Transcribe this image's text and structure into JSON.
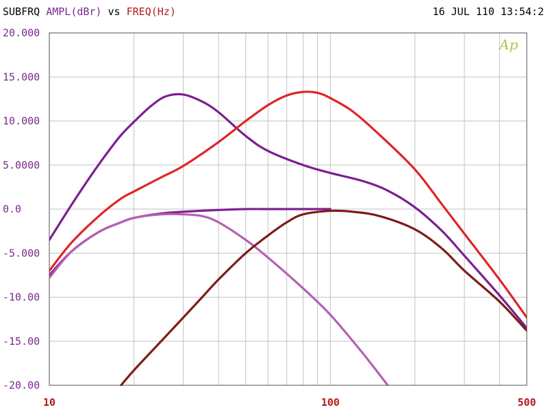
{
  "header": {
    "prefix": "SUBFRQ",
    "y_quantity": "AMPL(dBr)",
    "vs": "vs",
    "x_quantity": "FREQ(Hz)",
    "datetime": "16 JUL 110 13:54:2"
  },
  "logo": "Ap",
  "colors": {
    "grid": "#c2c2c2",
    "frame": "#8c8c8c",
    "ytick_text": "#7a2a8e",
    "xtick_text": "#b21a1a"
  },
  "chart_data": {
    "type": "line",
    "x_scale": "log",
    "xlim": [
      10,
      500
    ],
    "ylim": [
      -20,
      20
    ],
    "grid": true,
    "x_tick_labels": [
      {
        "value": 10,
        "label": "10"
      },
      {
        "value": 100,
        "label": "100"
      },
      {
        "value": 500,
        "label": "500"
      }
    ],
    "y_tick_labels": [
      {
        "value": 20,
        "label": "20.000"
      },
      {
        "value": 15,
        "label": "15.000"
      },
      {
        "value": 10,
        "label": "10.000"
      },
      {
        "value": 5,
        "label": "5.0000"
      },
      {
        "value": 0,
        "label": "0.0"
      },
      {
        "value": -5,
        "label": "-5.000"
      },
      {
        "value": -10,
        "label": "-10.00"
      },
      {
        "value": -15,
        "label": "-15.00"
      },
      {
        "value": -20,
        "label": "-20.00"
      }
    ],
    "series": [
      {
        "color": "#7a1f8f",
        "x": [
          10,
          12,
          14,
          16,
          18,
          20,
          23,
          26,
          30,
          35,
          40,
          50,
          60,
          80,
          100,
          130,
          160,
          200,
          250,
          300,
          400,
          500
        ],
        "y": [
          -3.5,
          0.5,
          3.7,
          6.3,
          8.4,
          9.9,
          11.7,
          12.8,
          13.0,
          12.2,
          11.0,
          8.3,
          6.6,
          5.0,
          4.1,
          3.2,
          2.1,
          0.2,
          -2.5,
          -5.3,
          -9.8,
          -13.5
        ]
      },
      {
        "color": "#e02424",
        "x": [
          10,
          12,
          15,
          18,
          20,
          25,
          30,
          40,
          50,
          60,
          70,
          80,
          90,
          100,
          120,
          150,
          200,
          250,
          300,
          400,
          500
        ],
        "y": [
          -7.0,
          -3.8,
          -0.8,
          1.2,
          2.0,
          3.6,
          4.9,
          7.6,
          10.0,
          11.8,
          12.9,
          13.3,
          13.2,
          12.6,
          11.1,
          8.4,
          4.5,
          0.5,
          -2.8,
          -8.0,
          -12.3
        ]
      },
      {
        "color": "#7e2190",
        "x": [
          10,
          12,
          15,
          18,
          20,
          25,
          30,
          40,
          50,
          60,
          80,
          100
        ],
        "y": [
          -7.5,
          -4.8,
          -2.6,
          -1.5,
          -1.0,
          -0.5,
          -0.3,
          -0.1,
          0.0,
          0.0,
          0.0,
          0.0
        ]
      },
      {
        "color": "#b55fb3",
        "x": [
          10,
          12,
          15,
          18,
          20,
          25,
          30,
          35,
          40,
          50,
          60,
          80,
          100,
          130,
          160
        ],
        "y": [
          -7.8,
          -4.8,
          -2.6,
          -1.5,
          -1.0,
          -0.6,
          -0.6,
          -0.8,
          -1.5,
          -3.5,
          -5.5,
          -9.0,
          -12.0,
          -16.3,
          -20.0
        ]
      },
      {
        "color": "#7c1d18",
        "x": [
          18,
          20,
          25,
          30,
          35,
          40,
          50,
          60,
          70,
          80,
          100,
          120,
          150,
          200,
          250,
          300,
          400,
          500
        ],
        "y": [
          -20.0,
          -18.3,
          -15.0,
          -12.3,
          -10.0,
          -8.0,
          -5.0,
          -3.0,
          -1.5,
          -0.6,
          -0.2,
          -0.3,
          -0.8,
          -2.3,
          -4.5,
          -7.0,
          -10.5,
          -13.8
        ]
      }
    ]
  }
}
